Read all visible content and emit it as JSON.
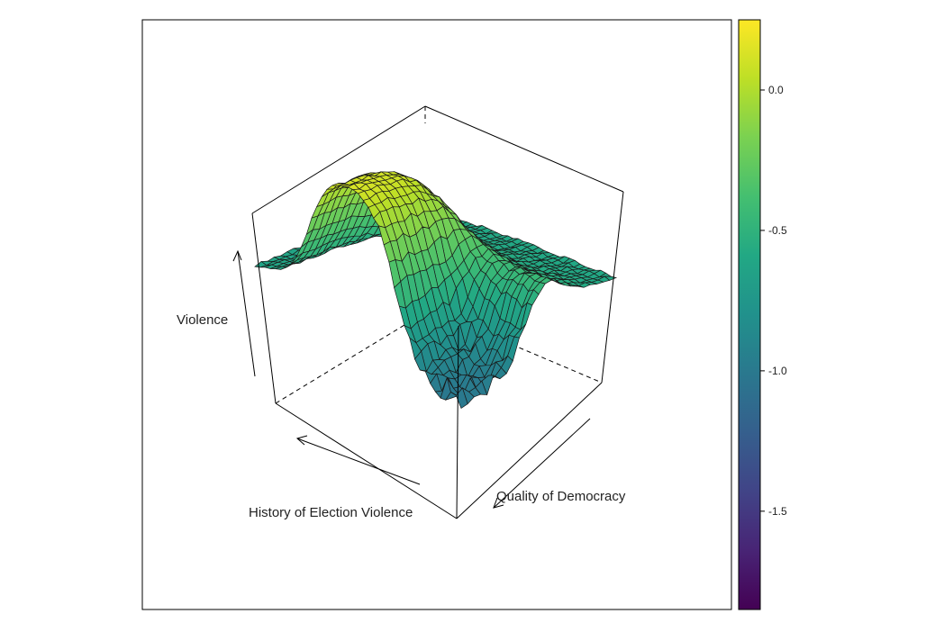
{
  "chart_data": {
    "type": "surface3d",
    "axes": {
      "x_label": "History of Election Violence",
      "y_label": "Quality of Democracy",
      "z_label": "Violence"
    },
    "colorbar": {
      "palette": "viridis",
      "range": [
        -1.85,
        0.25
      ],
      "ticks": [
        0.0,
        -0.5,
        -1.0,
        -1.5
      ],
      "tick_labels": [
        "0.0",
        "-0.5",
        "-1.0",
        "-1.5"
      ]
    },
    "surface": {
      "grid_x": 24,
      "grid_y": 40,
      "z_range": [
        -1.8,
        0.25
      ]
    },
    "colors": {
      "frame": "#000000",
      "background": "#ffffff"
    }
  }
}
